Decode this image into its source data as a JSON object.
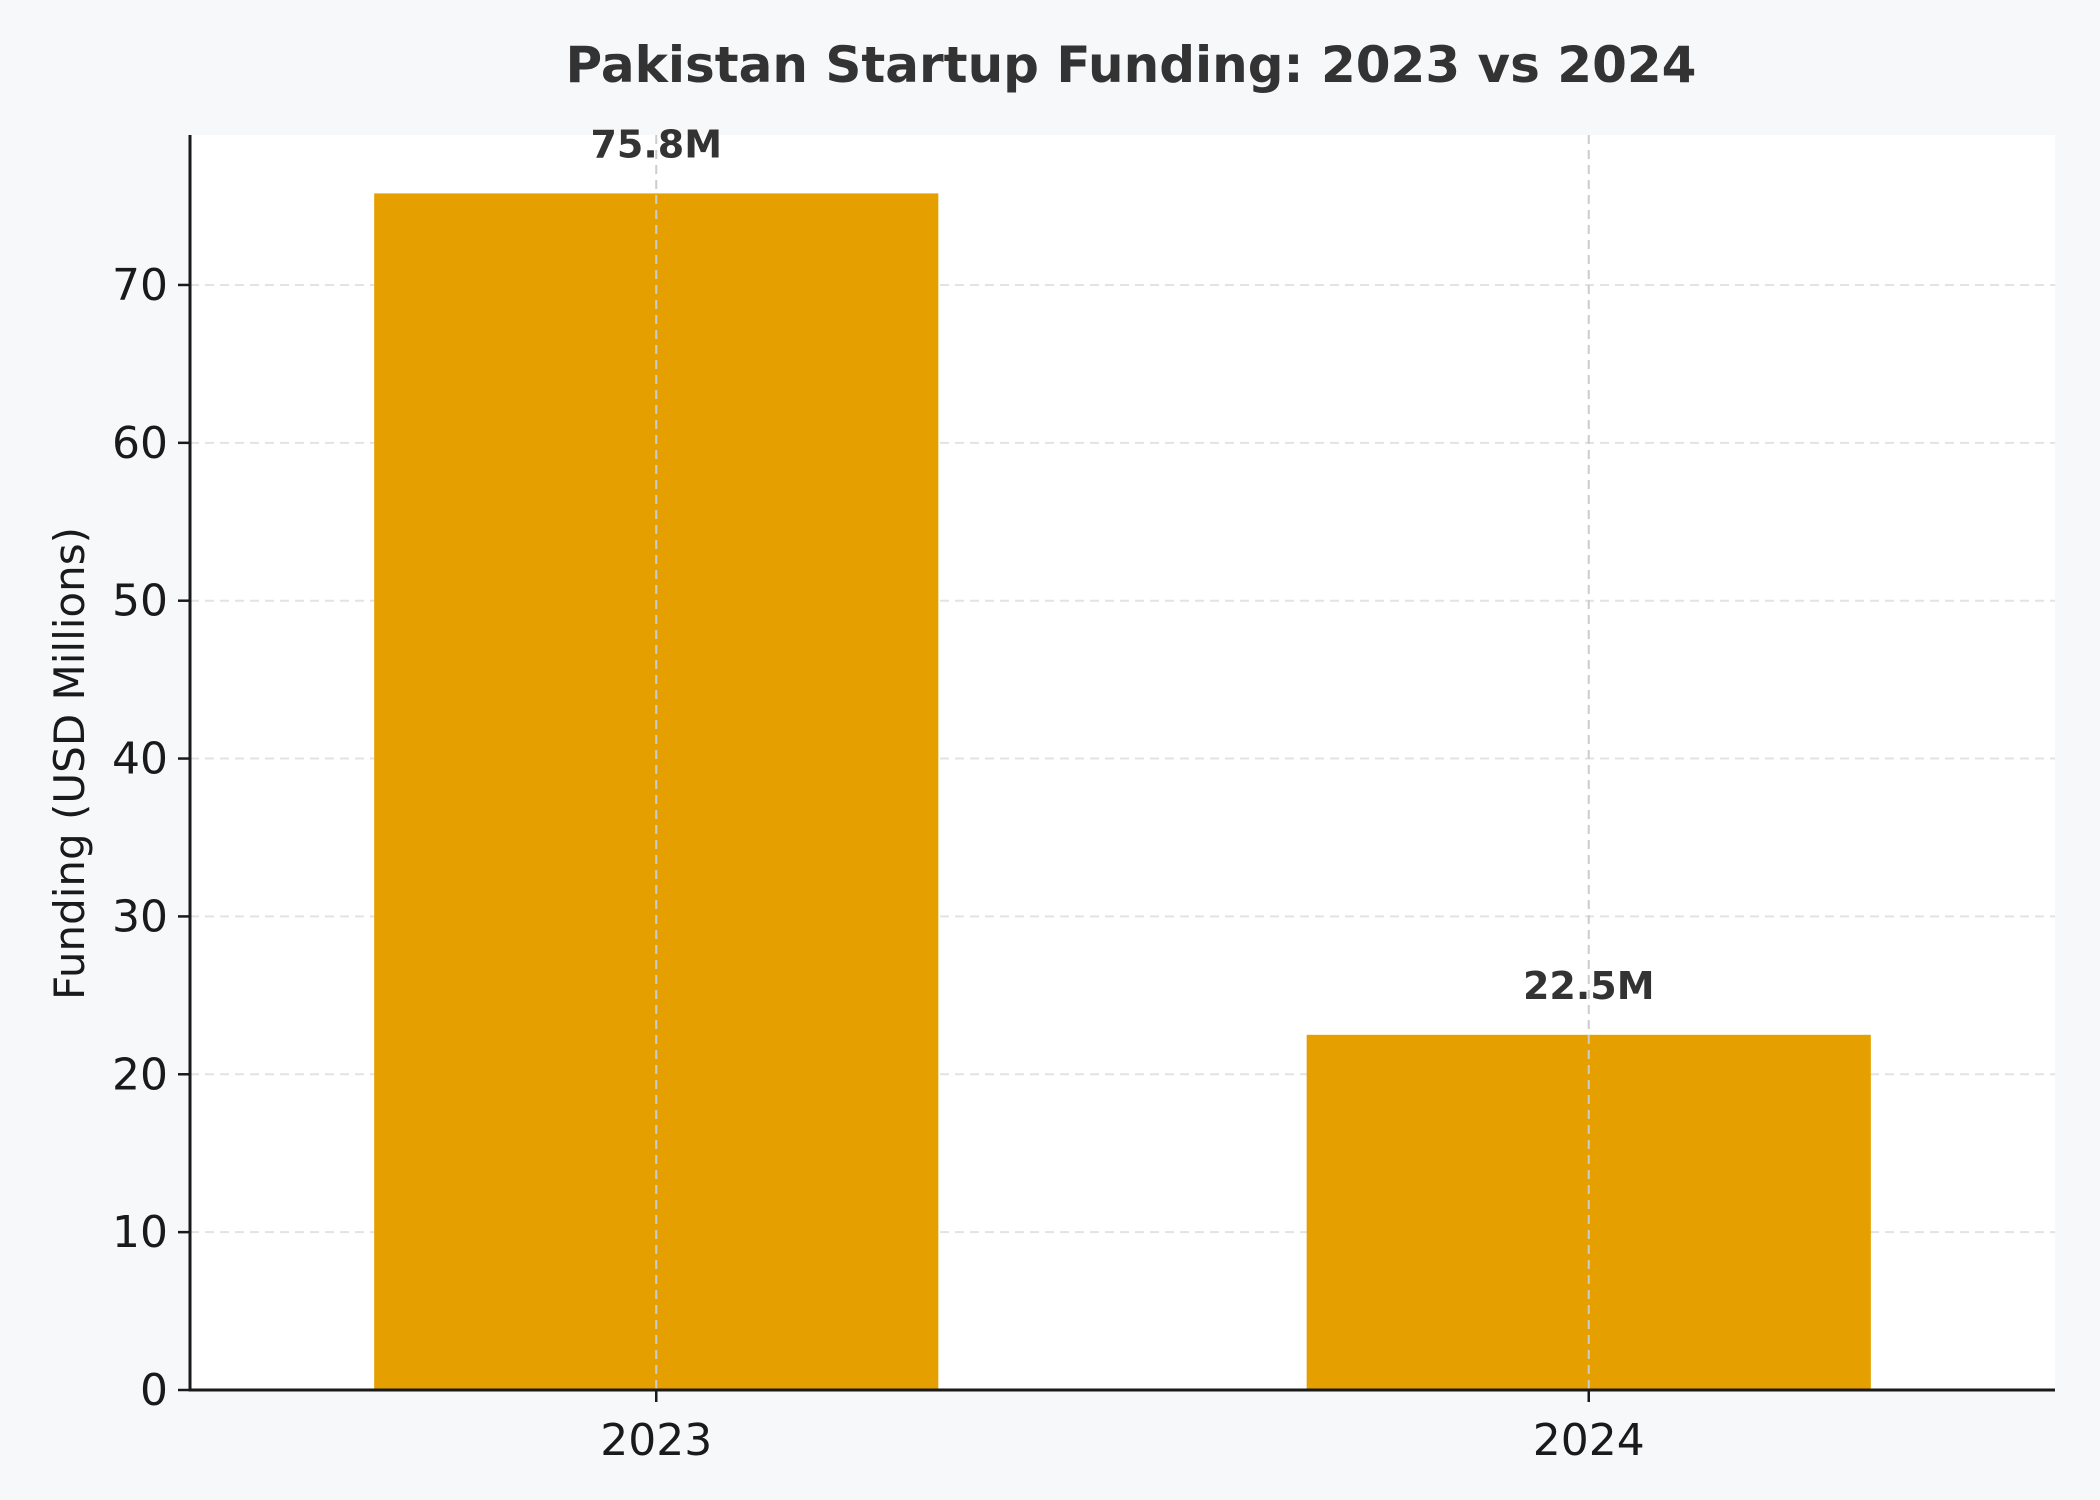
{
  "chart_data": {
    "type": "bar",
    "title": "Pakistan Startup Funding: 2023 vs 2024",
    "xlabel": "",
    "ylabel": "Funding (USD Millions)",
    "categories": [
      "2023",
      "2024"
    ],
    "values": [
      75.8,
      22.5
    ],
    "data_labels": [
      "75.8M",
      "22.5M"
    ],
    "ylim": [
      0,
      79.5
    ],
    "yticks": [
      0,
      10,
      20,
      30,
      40,
      50,
      60,
      70
    ],
    "grid": true,
    "grid_style": "dashed",
    "bar_color": "#e5a000",
    "plot_background": "#ffffff",
    "page_background": "#f7f8fa"
  }
}
